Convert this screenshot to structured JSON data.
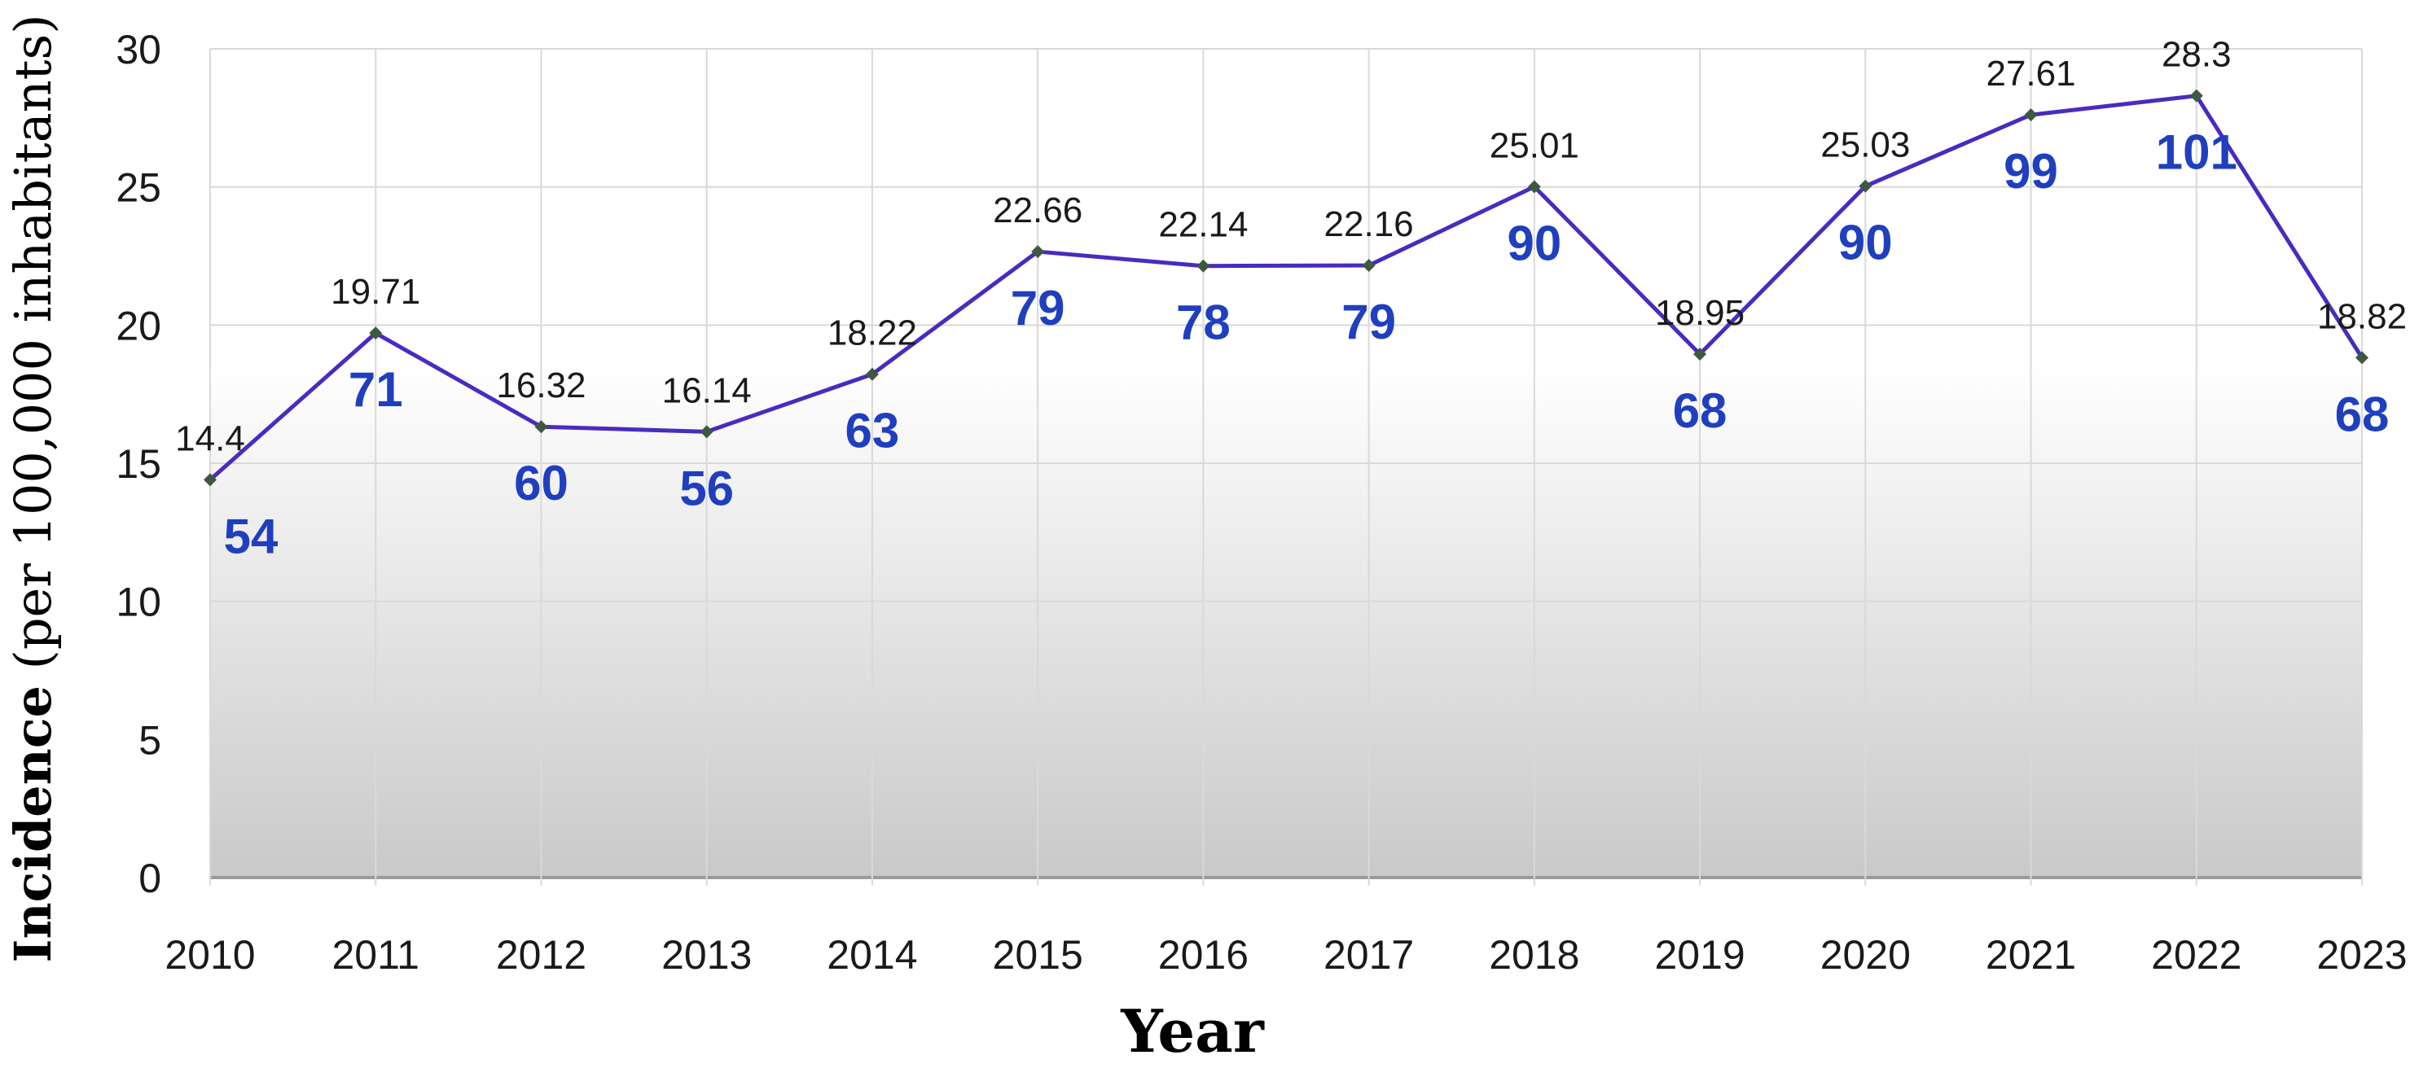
{
  "chart_data": {
    "type": "line",
    "xlabel": "Year",
    "ylabel_bold": "Incidence",
    "ylabel_rest": " (per 100,000 inhabitants)",
    "ylim": [
      0,
      30
    ],
    "yticks": [
      "0",
      "5",
      "10",
      "15",
      "20",
      "25",
      "30"
    ],
    "grid": true,
    "line_color": "#4a2bbf",
    "marker_color": "#3d5a40",
    "count_color": "#1f3fbf",
    "categories": [
      "2010",
      "2011",
      "2012",
      "2013",
      "2014",
      "2015",
      "2016",
      "2017",
      "2018",
      "2019",
      "2020",
      "2021",
      "2022",
      "2023"
    ],
    "series": [
      {
        "values": [
          14.4,
          19.71,
          16.32,
          16.14,
          18.22,
          22.66,
          22.14,
          22.16,
          25.01,
          18.95,
          25.03,
          27.61,
          28.3,
          18.82
        ],
        "value_labels": [
          "14.4",
          "19.71",
          "16.32",
          "16.14",
          "18.22",
          "22.66",
          "22.14",
          "22.16",
          "25.01",
          "18.95",
          "25.03",
          "27.61",
          "28.3",
          "18.82"
        ]
      }
    ],
    "count_labels": [
      "54",
      "71",
      "60",
      "56",
      "63",
      "79",
      "78",
      "79",
      "90",
      "68",
      "90",
      "99",
      "101",
      "68"
    ]
  }
}
